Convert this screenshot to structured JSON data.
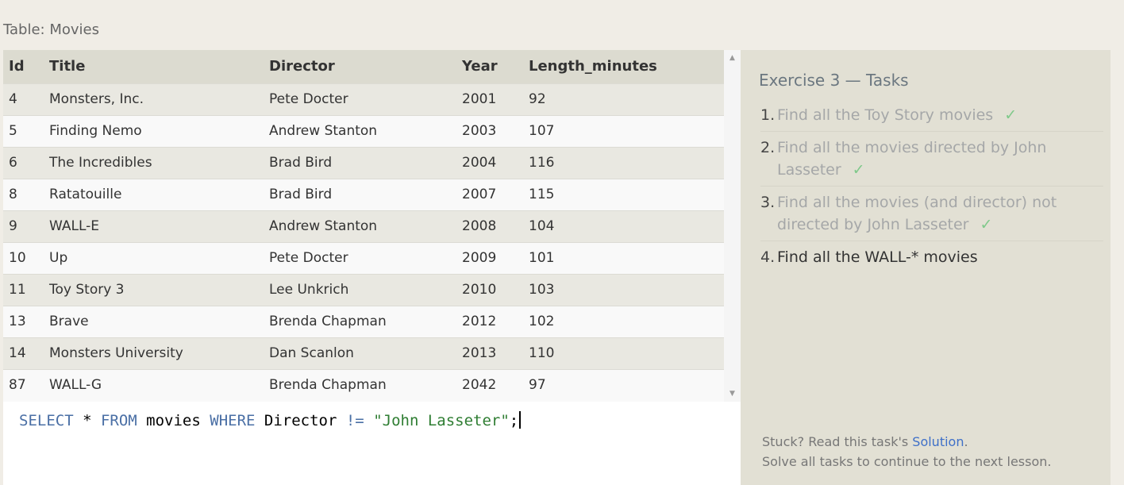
{
  "table_caption": "Table: Movies",
  "table": {
    "columns": [
      "Id",
      "Title",
      "Director",
      "Year",
      "Length_minutes"
    ],
    "rows": [
      [
        "4",
        "Monsters, Inc.",
        "Pete Docter",
        "2001",
        "92"
      ],
      [
        "5",
        "Finding Nemo",
        "Andrew Stanton",
        "2003",
        "107"
      ],
      [
        "6",
        "The Incredibles",
        "Brad Bird",
        "2004",
        "116"
      ],
      [
        "8",
        "Ratatouille",
        "Brad Bird",
        "2007",
        "115"
      ],
      [
        "9",
        "WALL-E",
        "Andrew Stanton",
        "2008",
        "104"
      ],
      [
        "10",
        "Up",
        "Pete Docter",
        "2009",
        "101"
      ],
      [
        "11",
        "Toy Story 3",
        "Lee Unkrich",
        "2010",
        "103"
      ],
      [
        "13",
        "Brave",
        "Brenda Chapman",
        "2012",
        "102"
      ],
      [
        "14",
        "Monsters University",
        "Dan Scanlon",
        "2013",
        "110"
      ],
      [
        "87",
        "WALL-G",
        "Brenda Chapman",
        "2042",
        "97"
      ]
    ]
  },
  "editor": {
    "query": {
      "select": "SELECT",
      "star": " * ",
      "from": "FROM",
      "table": " movies ",
      "where": "WHERE",
      "column": " Director ",
      "operator": "!=",
      "space": " ",
      "value": "\"John Lasseter\"",
      "end": ";"
    }
  },
  "tasks": {
    "title": "Exercise 3 — Tasks",
    "items": [
      {
        "num": "1.",
        "text": "Find all the Toy Story movies",
        "done": true
      },
      {
        "num": "2.",
        "text": "Find all the movies directed by John Lasseter",
        "done": true
      },
      {
        "num": "3.",
        "text": "Find all the movies (and director) not directed by John Lasseter",
        "done": true
      },
      {
        "num": "4.",
        "text": "Find all the WALL-* movies",
        "done": false
      }
    ],
    "check_mark": "✓",
    "help_prefix": "Stuck? Read this task's ",
    "help_link": "Solution",
    "help_suffix": ".",
    "help_line2": "Solve all tasks to continue to the next lesson."
  },
  "icons": {
    "scroll_up": "triangle-up-icon",
    "scroll_down": "triangle-down-icon"
  }
}
